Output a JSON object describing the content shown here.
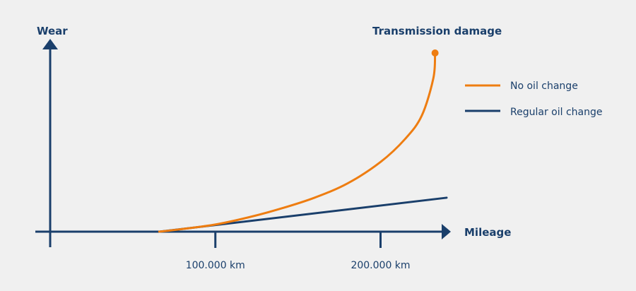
{
  "chart_data": {
    "type": "line",
    "title": "",
    "ylabel": "Wear",
    "xlabel": "Mileage",
    "x_ticks": [
      {
        "value": 100000,
        "label": "100.000 km"
      },
      {
        "value": 200000,
        "label": "200.000 km"
      }
    ],
    "xlim": [
      0,
      240000
    ],
    "ylim": [
      0,
      100
    ],
    "annotation": "Transmission damage",
    "series": [
      {
        "name": "No oil change",
        "color": "#ee7d11",
        "x": [
          66000,
          80000,
          100000,
          120000,
          140000,
          160000,
          180000,
          200000,
          215000,
          225000,
          232000,
          233000
        ],
        "y": [
          0,
          1.5,
          4,
          8,
          13,
          19,
          27,
          39,
          52,
          65,
          86,
          100
        ],
        "end_marker": true
      },
      {
        "name": "Regular oil change",
        "color": "#1a3f6b",
        "x": [
          66000,
          240000
        ],
        "y": [
          0,
          19
        ]
      }
    ],
    "axis_color": "#1a3f6b",
    "grid": false,
    "legend_position": "top-right"
  }
}
